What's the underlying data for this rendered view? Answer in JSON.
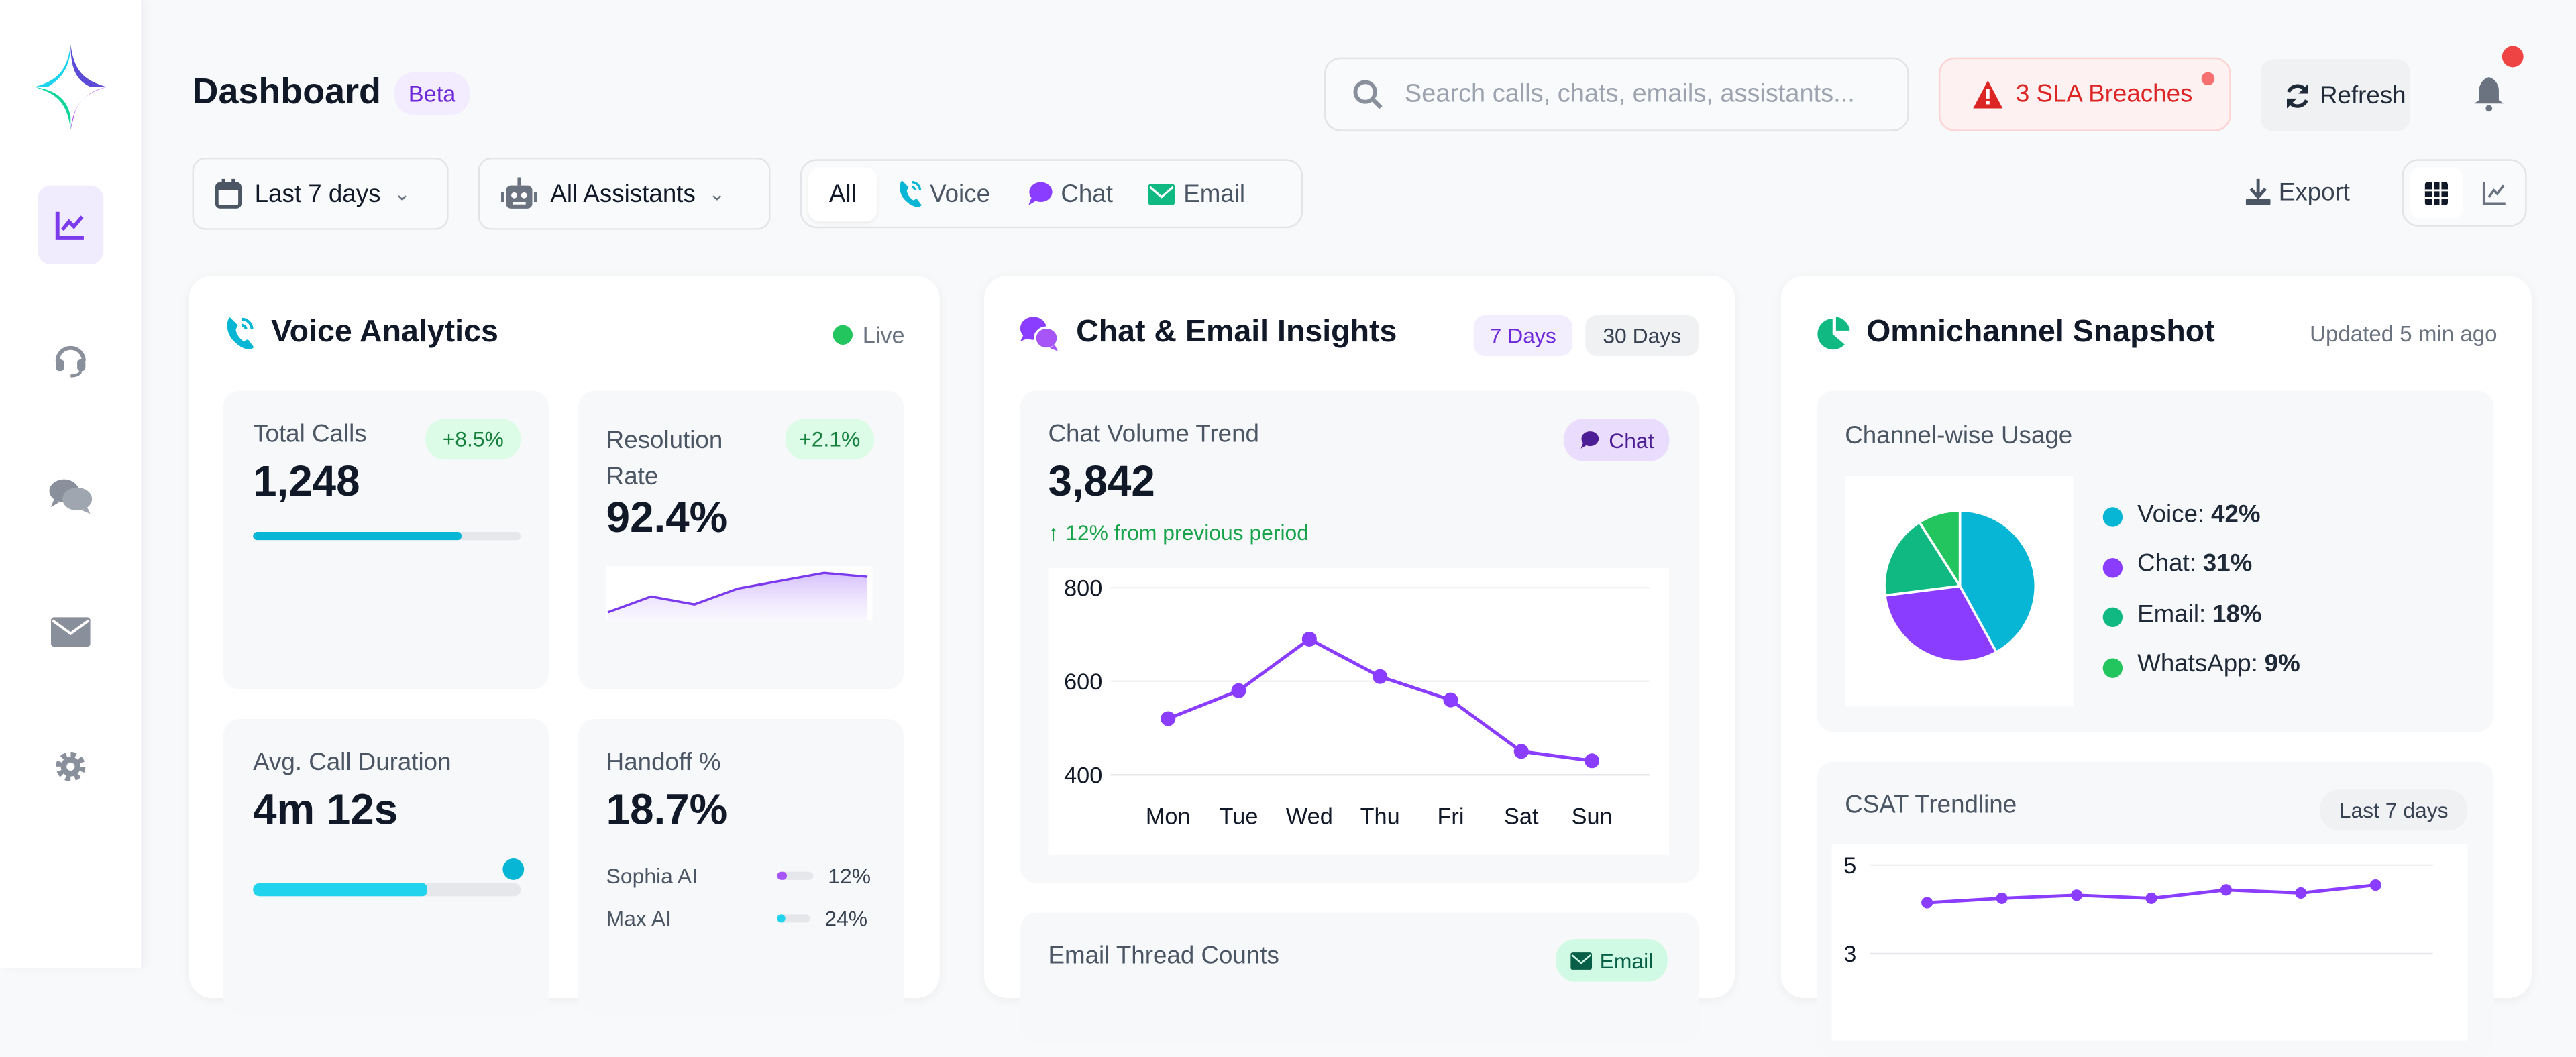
{
  "sidebar": {
    "items": [
      {
        "name": "analytics",
        "icon": "chart-line-icon",
        "active": true
      },
      {
        "name": "support",
        "icon": "headset-icon"
      },
      {
        "name": "chats",
        "icon": "comments-icon"
      },
      {
        "name": "email",
        "icon": "envelope-icon"
      },
      {
        "name": "settings",
        "icon": "gear-icon"
      }
    ]
  },
  "header": {
    "title": "Dashboard",
    "badge": "Beta",
    "search_placeholder": "Search calls, chats, emails, assistants...",
    "sla": "3 SLA Breaches",
    "refresh": "Refresh"
  },
  "filters": {
    "date": "Last 7 days",
    "assistant": "All Assistants",
    "channels": [
      "All",
      "Voice",
      "Chat",
      "Email"
    ],
    "active_channel": "All",
    "export": "Export",
    "view": "table"
  },
  "colors": {
    "accent": "#7c3aed",
    "voice": "#06b6d4",
    "chat": "#8b3dff",
    "email": "#10b981",
    "whatsapp": "#22c55e",
    "danger": "#dc2626"
  },
  "voice": {
    "title": "Voice Analytics",
    "status": "Live",
    "total_calls": {
      "label": "Total Calls",
      "value": "1,248",
      "delta": "+8.5%",
      "progress": 0.78
    },
    "resolution": {
      "label": "Resolution Rate",
      "value": "92.4%",
      "delta": "+2.1%",
      "sparkline": [
        1,
        3,
        2,
        4,
        5,
        6,
        5.5
      ]
    },
    "duration": {
      "label": "Avg. Call Duration",
      "value": "4m 12s",
      "progress": 0.65
    },
    "handoff": {
      "label": "Handoff %",
      "value": "18.7%",
      "agents": [
        {
          "name": "Sophia AI",
          "value": "12%",
          "fraction": 0.12
        },
        {
          "name": "Max AI",
          "value": "24%",
          "fraction": 0.24
        }
      ]
    }
  },
  "chat": {
    "title": "Chat & Email Insights",
    "ranges": [
      "7 Days",
      "30 Days"
    ],
    "active_range": "7 Days",
    "volume": {
      "label": "Chat Volume Trend",
      "badge": "Chat",
      "value": "3,842",
      "change": "12% from previous period"
    },
    "email": {
      "label": "Email Thread Counts",
      "badge": "Email"
    }
  },
  "omni": {
    "title": "Omnichannel Snapshot",
    "updated": "Updated 5 min ago",
    "usage": {
      "label": "Channel-wise Usage",
      "legend": [
        {
          "name": "Voice:",
          "value": "42%"
        },
        {
          "name": "Chat:",
          "value": "31%"
        },
        {
          "name": "Email:",
          "value": "18%"
        },
        {
          "name": "WhatsApp:",
          "value": "9%"
        }
      ]
    },
    "csat": {
      "label": "CSAT Trendline",
      "range": "Last 7 days"
    }
  },
  "chart_data": [
    {
      "type": "line",
      "categories": [
        "Mon",
        "Tue",
        "Wed",
        "Thu",
        "Fri",
        "Sat",
        "Sun"
      ],
      "values": [
        520,
        580,
        690,
        610,
        560,
        450,
        430
      ],
      "yticks": [
        "800",
        "600",
        "400"
      ],
      "ylim": [
        400,
        800
      ],
      "grid": true,
      "color": "#8b3dff"
    },
    {
      "type": "pie",
      "categories": [
        "Voice",
        "Chat",
        "Email",
        "WhatsApp"
      ],
      "values": [
        42,
        31,
        18,
        9
      ],
      "colors": [
        "#06b6d4",
        "#8b3dff",
        "#10b981",
        "#22c55e"
      ]
    },
    {
      "type": "line",
      "values": [
        4.15,
        4.25,
        4.32,
        4.25,
        4.44,
        4.37,
        4.55
      ],
      "yticks": [
        "5",
        "3"
      ],
      "ylim": [
        3,
        5
      ],
      "grid": true,
      "color": "#8b3dff"
    }
  ]
}
